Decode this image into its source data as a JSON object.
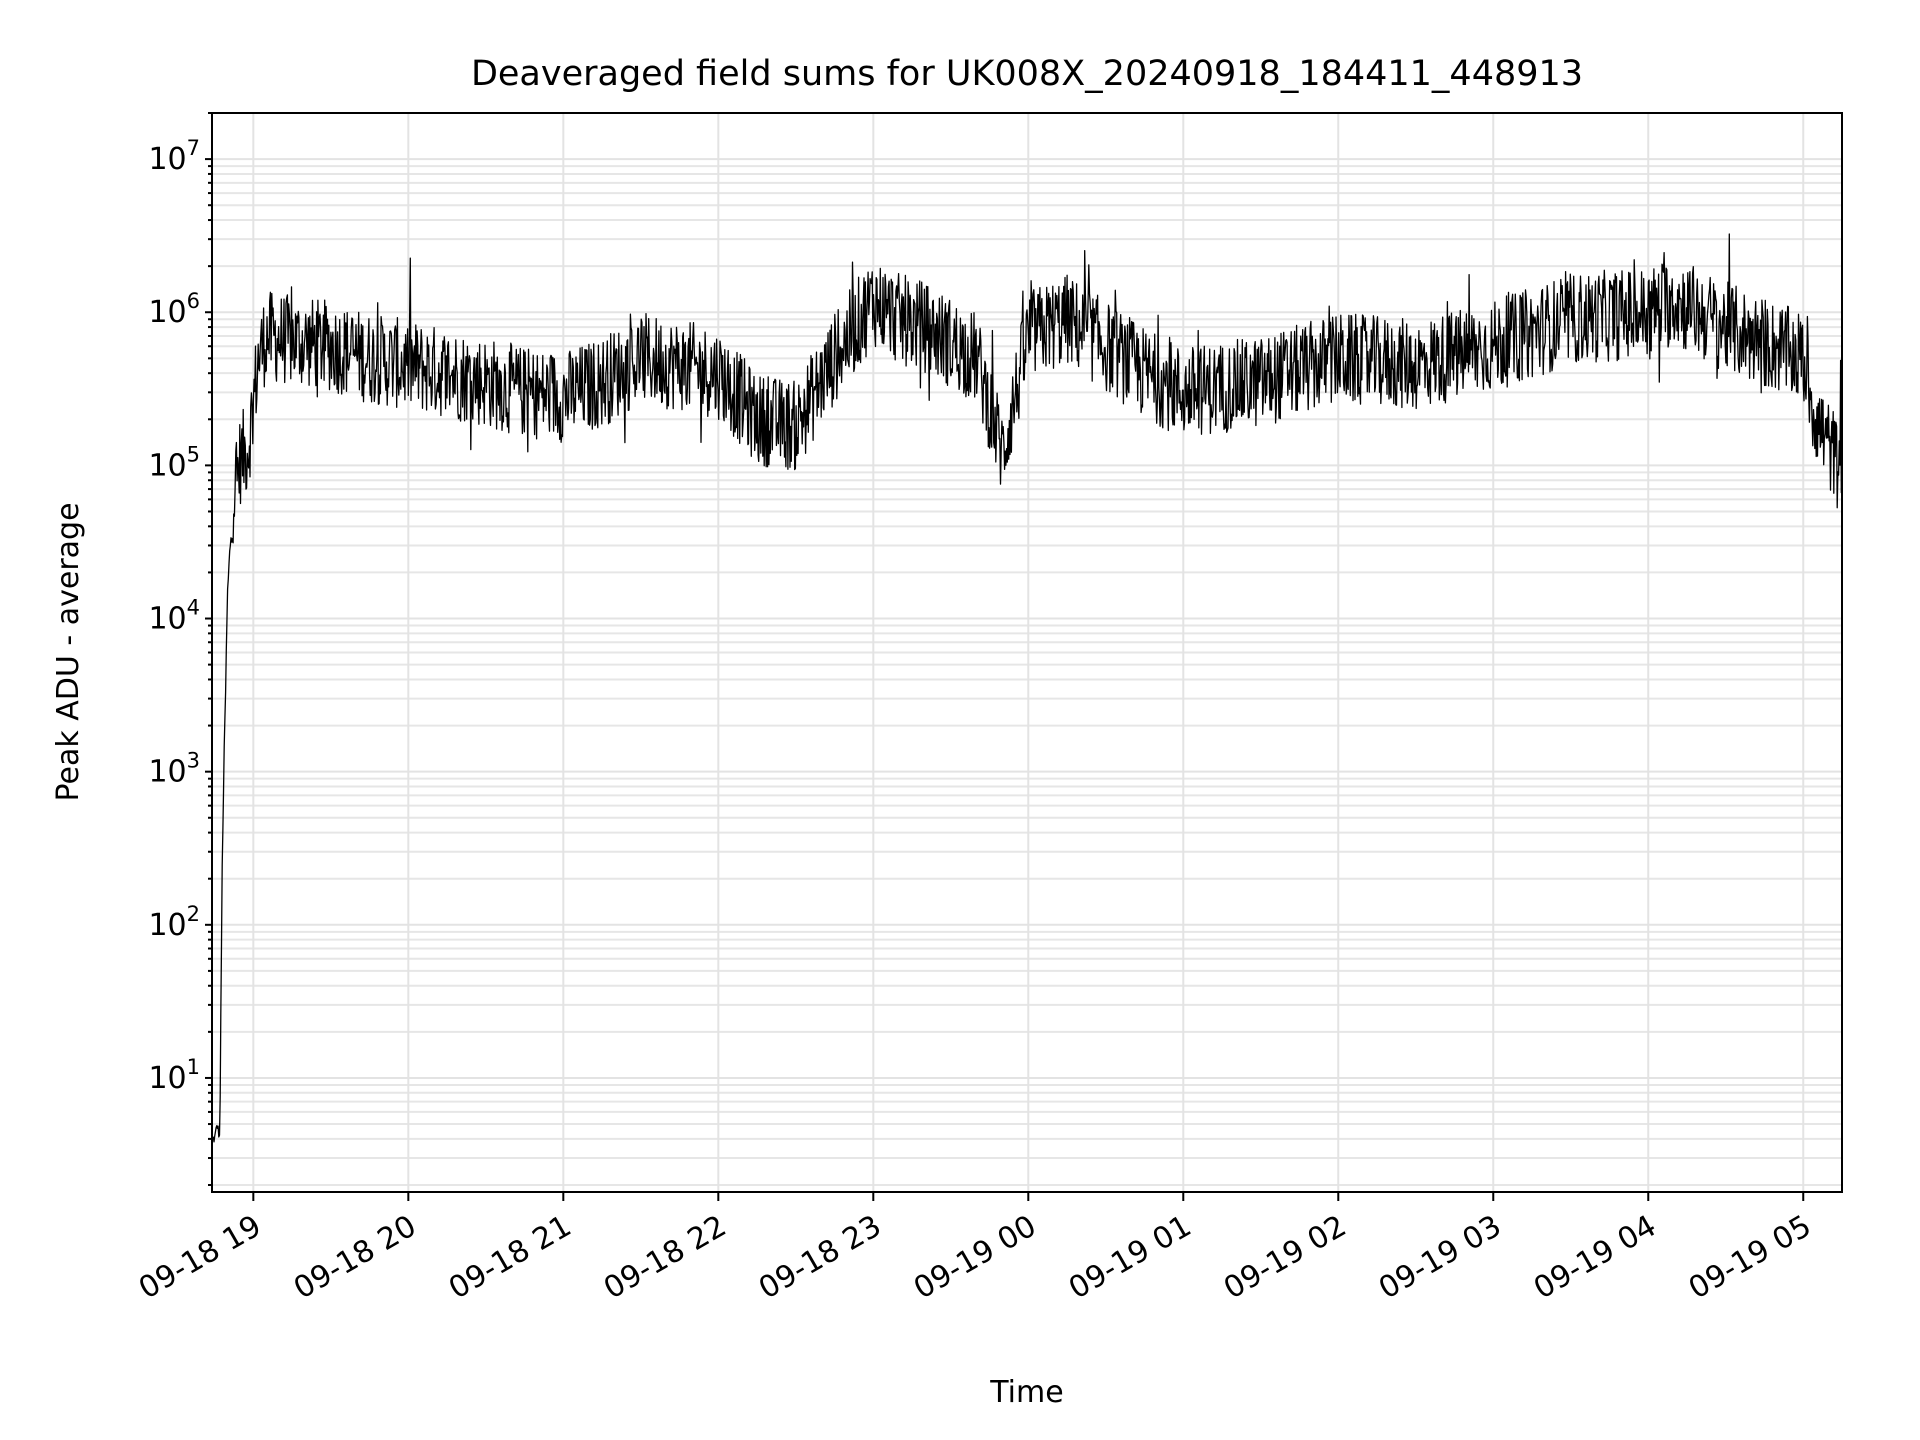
{
  "chart_data": {
    "type": "line",
    "title": "Deaveraged field sums for UK008X_20240918_184411_448913",
    "xlabel": "Time",
    "ylabel": "Peak ADU - average",
    "yscale": "log",
    "ylim": [
      1.8,
      20000000
    ],
    "xlim": [
      "2024-09-18 18:44",
      "2024-09-19 05:15"
    ],
    "grid": true,
    "x_ticks": [
      "09-18 19",
      "09-18 20",
      "09-18 21",
      "09-18 22",
      "09-18 23",
      "09-19 00",
      "09-19 01",
      "09-19 02",
      "09-19 03",
      "09-19 04",
      "09-19 05"
    ],
    "y_ticks": [
      {
        "base": "10",
        "exp": "1"
      },
      {
        "base": "10",
        "exp": "2"
      },
      {
        "base": "10",
        "exp": "3"
      },
      {
        "base": "10",
        "exp": "4"
      },
      {
        "base": "10",
        "exp": "5"
      },
      {
        "base": "10",
        "exp": "6"
      },
      {
        "base": "10",
        "exp": "7"
      }
    ],
    "line_color": "#000000",
    "series": [
      {
        "x": [
          "2024-09-18 18:44",
          "2024-09-18 18:45",
          "2024-09-18 18:46",
          "2024-09-18 18:47",
          "2024-09-18 18:48",
          "2024-09-18 18:50",
          "2024-09-18 18:52",
          "2024-09-18 18:55",
          "2024-09-18 18:58",
          "2024-09-18 19:02",
          "2024-09-18 19:05",
          "2024-09-18 19:15",
          "2024-09-18 19:30",
          "2024-09-18 19:45",
          "2024-09-18 20:00",
          "2024-09-18 20:15",
          "2024-09-18 20:30",
          "2024-09-18 20:45",
          "2024-09-18 21:00",
          "2024-09-18 21:15",
          "2024-09-18 21:30",
          "2024-09-18 21:45",
          "2024-09-18 22:00",
          "2024-09-18 22:15",
          "2024-09-18 22:30",
          "2024-09-18 22:45",
          "2024-09-18 23:00",
          "2024-09-18 23:10",
          "2024-09-18 23:20",
          "2024-09-18 23:40",
          "2024-09-18 23:50",
          "2024-09-19 00:00",
          "2024-09-19 00:15",
          "2024-09-19 00:30",
          "2024-09-19 00:45",
          "2024-09-19 01:00",
          "2024-09-19 01:30",
          "2024-09-19 02:00",
          "2024-09-19 02:30",
          "2024-09-19 03:00",
          "2024-09-19 03:30",
          "2024-09-19 04:00",
          "2024-09-19 04:10",
          "2024-09-19 04:30",
          "2024-09-19 05:00",
          "2024-09-19 05:05",
          "2024-09-19 05:15"
        ],
        "y": [
          4,
          4,
          5,
          4,
          300,
          14000,
          60000,
          110000,
          130000,
          500000,
          700000,
          650000,
          600000,
          500000,
          450000,
          400000,
          350000,
          300000,
          280000,
          350000,
          500000,
          450000,
          400000,
          200000,
          180000,
          500000,
          1200000,
          900000,
          800000,
          500000,
          120000,
          700000,
          900000,
          600000,
          400000,
          300000,
          350000,
          500000,
          450000,
          600000,
          900000,
          1000000,
          1200000,
          800000,
          500000,
          200000,
          90000
        ]
      }
    ]
  }
}
